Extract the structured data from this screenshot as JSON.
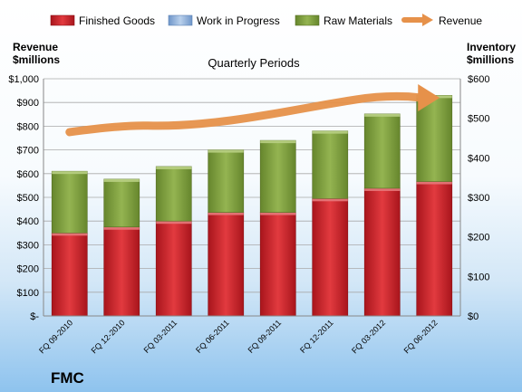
{
  "brand": {
    "ticker": "FMC"
  },
  "chart_data": {
    "type": "bar",
    "stacked": true,
    "title": "Quarterly Periods",
    "left_axis_label": [
      "Revenue",
      "$millions"
    ],
    "right_axis_label": [
      "Inventory",
      "$millions"
    ],
    "categories": [
      "FQ 09-2010",
      "FQ 12-2010",
      "FQ 03-2011",
      "FQ 06-2011",
      "FQ 09-2011",
      "FQ 12-2011",
      "FQ 03-2012",
      "FQ 06-2012"
    ],
    "left_ticks": [
      "$-",
      "$100",
      "$200",
      "$300",
      "$400",
      "$500",
      "$600",
      "$700",
      "$800",
      "$900",
      "$1,000"
    ],
    "right_ticks": [
      "$0",
      "$100",
      "$200",
      "$300",
      "$400",
      "$500",
      "$600"
    ],
    "ylim_left": [
      0,
      1000
    ],
    "ylim_right": [
      0,
      600
    ],
    "legend_position": "top",
    "series": [
      {
        "name": "Finished Goods",
        "axis": "right",
        "kind": "bar",
        "color": "#c0272d",
        "values": [
          210,
          225,
          240,
          262,
          262,
          297,
          323,
          340
        ]
      },
      {
        "name": "Work in Progress",
        "axis": "right",
        "kind": "bar",
        "color": "#8fb2dd",
        "values": [
          0,
          0,
          0,
          0,
          0,
          0,
          0,
          0
        ]
      },
      {
        "name": "Raw Materials",
        "axis": "right",
        "kind": "bar",
        "color": "#7a9a3a",
        "values": [
          156,
          121,
          138,
          158,
          182,
          171,
          188,
          218
        ]
      },
      {
        "name": "Revenue",
        "axis": "left",
        "kind": "line",
        "color": "#e6914a",
        "values": [
          775,
          805,
          800,
          820,
          855,
          895,
          930,
          920
        ]
      }
    ]
  }
}
